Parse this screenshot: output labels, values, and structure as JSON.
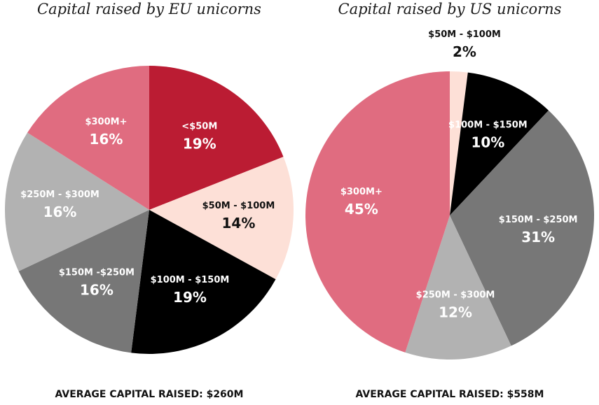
{
  "chart_data": [
    {
      "type": "pie",
      "title": "Capital raised by EU unicorns",
      "footer": "AVERAGE CAPITAL RAISED: $260M",
      "slices": [
        {
          "label": "<$50M",
          "value": 19,
          "value_label": "19%",
          "color": "#bb1c33",
          "text_color": "#ffffff"
        },
        {
          "label": "$50M - $100M",
          "value": 14,
          "value_label": "14%",
          "color": "#fde0d7",
          "text_color": "#111111"
        },
        {
          "label": "$100M - $150M",
          "value": 19,
          "value_label": "19%",
          "color": "#000000",
          "text_color": "#ffffff"
        },
        {
          "label": "$150M -$250M",
          "value": 16,
          "value_label": "16%",
          "color": "#777777",
          "text_color": "#ffffff"
        },
        {
          "label": "$250M - $300M",
          "value": 16,
          "value_label": "16%",
          "color": "#b2b2b2",
          "text_color": "#ffffff"
        },
        {
          "label": "$300M+",
          "value": 16,
          "value_label": "16%",
          "color": "#e06c80",
          "text_color": "#ffffff"
        }
      ]
    },
    {
      "type": "pie",
      "title": "Capital raised by US unicorns",
      "footer": "AVERAGE CAPITAL RAISED: $558M",
      "slices": [
        {
          "label": "$50M - $100M",
          "value": 2,
          "value_label": "2%",
          "color": "#fde0d7",
          "text_color": "#111111"
        },
        {
          "label": "$100M - $150M",
          "value": 10,
          "value_label": "10%",
          "color": "#000000",
          "text_color": "#ffffff"
        },
        {
          "label": "$150M - $250M",
          "value": 31,
          "value_label": "31%",
          "color": "#777777",
          "text_color": "#ffffff"
        },
        {
          "label": "$250M - $300M",
          "value": 12,
          "value_label": "12%",
          "color": "#b2b2b2",
          "text_color": "#ffffff"
        },
        {
          "label": "$300M+",
          "value": 45,
          "value_label": "45%",
          "color": "#e06c80",
          "text_color": "#ffffff"
        }
      ]
    }
  ]
}
